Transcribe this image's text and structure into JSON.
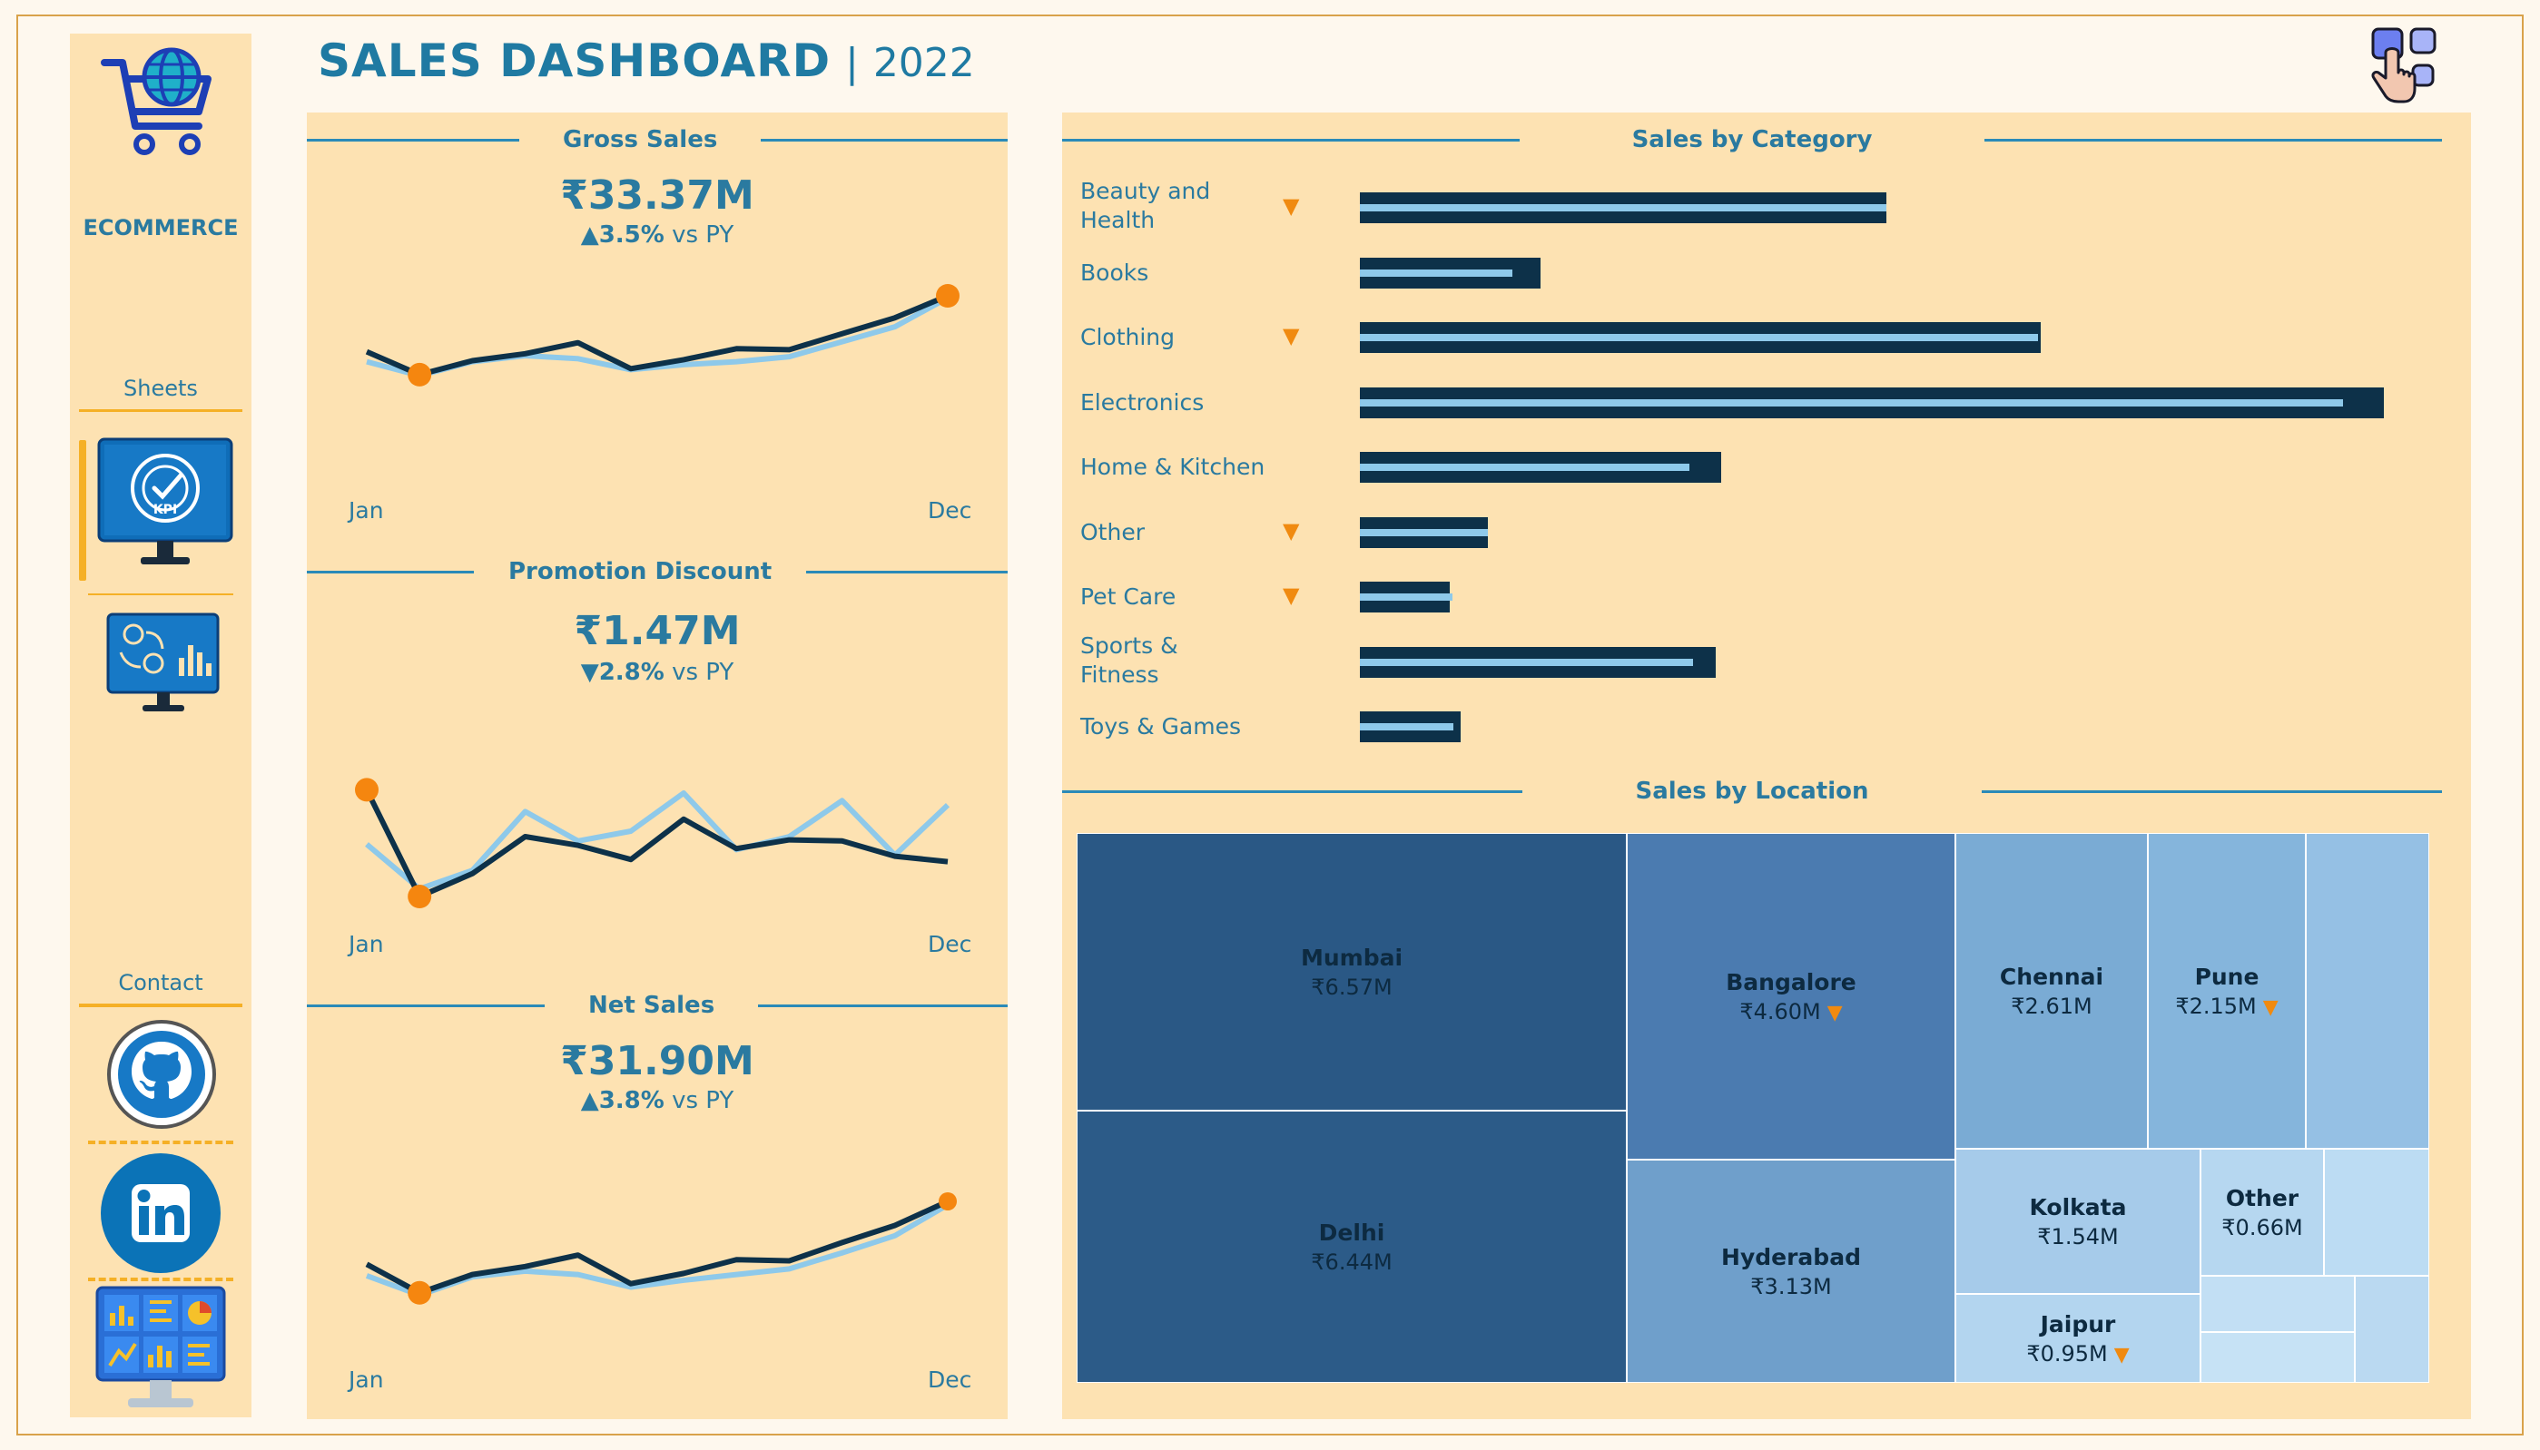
{
  "header": {
    "title": "SALES DASHBOARD",
    "separator": "|",
    "year": "2022"
  },
  "sidebar": {
    "brand": "ECOMMERCE",
    "sheets_label": "Sheets",
    "contact_label": "Contact",
    "icons": [
      "shopping-cart-globe-icon",
      "kpi-monitor-icon",
      "analytics-monitor-icon",
      "github-icon",
      "linkedin-icon",
      "dashboard-monitor-icon"
    ]
  },
  "kpis": [
    {
      "title": "Gross Sales",
      "value": "₹33.37M",
      "arrow": "▲",
      "delta": "3.5%",
      "suffix": " vs PY",
      "x_start": "Jan",
      "x_end": "Dec",
      "current": [
        0.44,
        0.21,
        0.35,
        0.42,
        0.53,
        0.27,
        0.36,
        0.47,
        0.46,
        0.62,
        0.78,
        1.0
      ],
      "previous": [
        0.34,
        0.2,
        0.34,
        0.4,
        0.37,
        0.26,
        0.31,
        0.34,
        0.39,
        0.54,
        0.69,
        0.98
      ],
      "min_month": 1,
      "max_month": 11
    },
    {
      "title": "Promotion Discount",
      "value": "₹1.47M",
      "arrow": "▼",
      "delta": "2.8%",
      "suffix": " vs PY",
      "x_start": "Jan",
      "x_end": "Dec",
      "current": [
        0.98,
        0.0,
        0.21,
        0.55,
        0.47,
        0.34,
        0.71,
        0.44,
        0.52,
        0.51,
        0.37,
        0.32
      ],
      "previous": [
        0.48,
        0.07,
        0.24,
        0.78,
        0.51,
        0.6,
        0.95,
        0.43,
        0.55,
        0.88,
        0.38,
        0.84
      ],
      "min_month": 1,
      "max_month": 0
    },
    {
      "title": "Net Sales",
      "value": "₹31.90M",
      "arrow": "▲",
      "delta": "3.8%",
      "suffix": " vs PY",
      "x_start": "Jan",
      "x_end": "Dec",
      "current": [
        0.45,
        0.2,
        0.36,
        0.43,
        0.53,
        0.28,
        0.37,
        0.49,
        0.48,
        0.64,
        0.79,
        1.0
      ],
      "previous": [
        0.35,
        0.18,
        0.34,
        0.39,
        0.36,
        0.25,
        0.31,
        0.36,
        0.41,
        0.55,
        0.7,
        0.97
      ],
      "min_month": 1,
      "max_month": 11
    }
  ],
  "chart_data": [
    {
      "type": "bar",
      "title": "Sales by Category",
      "categories": [
        "Beauty and Health",
        "Books",
        "Clothing",
        "Electronics",
        "Home & Kitchen",
        "Other",
        "Pet Care",
        "Sports & Fitness",
        "Toys & Games"
      ],
      "down_flag": [
        true,
        false,
        true,
        false,
        false,
        true,
        true,
        false,
        false
      ],
      "series": [
        {
          "values": [
            3.7,
            1.27,
            4.79,
            7.2,
            2.54,
            0.9,
            0.63,
            2.5,
            0.71
          ]
        },
        {
          "values": [
            3.7,
            1.07,
            4.77,
            6.91,
            2.32,
            0.9,
            0.65,
            2.34,
            0.66
          ]
        }
      ],
      "xlim": [
        0,
        7.5
      ]
    },
    {
      "type": "treemap",
      "title": "Sales by Location",
      "tiles": [
        {
          "city": "Mumbai",
          "value": "₹6.57M",
          "down": false
        },
        {
          "city": "Delhi",
          "value": "₹6.44M",
          "down": false
        },
        {
          "city": "Bangalore",
          "value": "₹4.60M",
          "down": true
        },
        {
          "city": "Hyderabad",
          "value": "₹3.13M",
          "down": false
        },
        {
          "city": "Chennai",
          "value": "₹2.61M",
          "down": false
        },
        {
          "city": "Pune",
          "value": "₹2.15M",
          "down": true
        },
        {
          "city": "Kolkata",
          "value": "₹1.54M",
          "down": false
        },
        {
          "city": "Jaipur",
          "value": "₹0.95M",
          "down": true
        },
        {
          "city": "Other",
          "value": "₹0.66M",
          "down": false
        }
      ]
    }
  ],
  "colors": {
    "current_line": "#0d3149",
    "previous_line": "#8ec9ea",
    "marker": "#f5860f",
    "panel": "#fde2b2",
    "accent": "#2a7aa0"
  }
}
